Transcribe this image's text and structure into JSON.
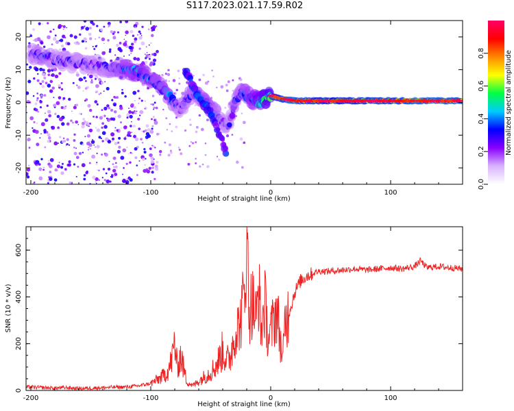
{
  "figure": {
    "title": "S117.2023.021.17.59.R02"
  },
  "chart_data": [
    {
      "type": "heatmap",
      "title": "",
      "xlabel": "Height of straight line (km)",
      "ylabel": "Frequency (Hz)",
      "xlim": [
        -204,
        160
      ],
      "ylim": [
        -25,
        25
      ],
      "xticks": [
        -200,
        -100,
        0,
        100
      ],
      "yticks": [
        -20,
        -10,
        0,
        10,
        20
      ],
      "xtick_labels": [
        "-200",
        "-100",
        "0",
        "100"
      ],
      "ytick_labels": [
        "-20",
        "-10",
        "0",
        "10",
        "20"
      ],
      "colorbar": {
        "label": "Normalized spectral amplitude",
        "range": [
          0,
          1
        ],
        "ticks": [
          0.0,
          0.2,
          0.4,
          0.6,
          0.8
        ],
        "tick_labels": [
          "0.0",
          "0.2",
          "0.4",
          "0.6",
          "0.8"
        ],
        "colormap": [
          "#ffffff",
          "#d9b3ff",
          "#8800ff",
          "#0000ff",
          "#00ccff",
          "#00ff44",
          "#ffff00",
          "#ff8800",
          "#ff0000",
          "#ff0066"
        ]
      },
      "ridge": {
        "x": [
          -200,
          -190,
          -180,
          -170,
          -160,
          -150,
          -140,
          -130,
          -120,
          -110,
          -100,
          -90,
          -85,
          -80,
          -75,
          -70,
          -65,
          -60,
          -55,
          -50,
          -45,
          -40,
          -36,
          -33,
          -30,
          -25,
          -20,
          -15,
          -10,
          -5,
          0,
          10,
          20,
          40,
          60,
          80,
          100,
          120,
          140,
          160
        ],
        "y": [
          15,
          14,
          13,
          12.5,
          12,
          11.5,
          11,
          10.5,
          10,
          9.5,
          7,
          4,
          2,
          0,
          -2,
          1,
          3,
          2,
          0,
          -2,
          -4,
          -6,
          -7,
          -5,
          0,
          3,
          2,
          1,
          0,
          1,
          2,
          1,
          0.5,
          0.5,
          0.5,
          0.5,
          0.5,
          0.5,
          0.5,
          0.5
        ],
        "amplitude": [
          0.3,
          0.35,
          0.3,
          0.3,
          0.3,
          0.3,
          0.3,
          0.35,
          0.4,
          0.45,
          0.4,
          0.4,
          0.4,
          0.35,
          0.3,
          0.35,
          0.35,
          0.35,
          0.4,
          0.4,
          0.35,
          0.3,
          0.3,
          0.3,
          0.35,
          0.35,
          0.4,
          0.45,
          0.5,
          0.55,
          0.6,
          0.8,
          0.85,
          0.75,
          0.75,
          0.8,
          0.8,
          0.85,
          0.85,
          0.85
        ]
      },
      "branch": {
        "x": [
          -72,
          -68,
          -65,
          -62,
          -58,
          -55,
          -50,
          -47,
          -44,
          -40,
          -37
        ],
        "y": [
          10,
          8,
          5,
          3,
          1,
          -1,
          -3,
          -6,
          -9,
          -12,
          -16
        ]
      }
    },
    {
      "type": "line",
      "title": "",
      "xlabel": "Height of straight line (km)",
      "ylabel": "SNR (10 * v/v)",
      "xlim": [
        -204,
        160
      ],
      "ylim": [
        0,
        700
      ],
      "xticks": [
        -200,
        -100,
        0,
        100
      ],
      "yticks": [
        0,
        200,
        400,
        600
      ],
      "xtick_labels": [
        "-200",
        "-100",
        "0",
        "100"
      ],
      "ytick_labels": [
        "0",
        "200",
        "400",
        "600"
      ],
      "series": [
        {
          "color": "#ee2222",
          "x": [
            -204,
            -190,
            -180,
            -170,
            -160,
            -150,
            -140,
            -130,
            -120,
            -110,
            -100,
            -95,
            -90,
            -85,
            -82,
            -80,
            -78,
            -75,
            -72,
            -70,
            -65,
            -60,
            -55,
            -50,
            -45,
            -40,
            -35,
            -30,
            -25,
            -22,
            -20,
            -18,
            -15,
            -12,
            -10,
            -8,
            -5,
            -2,
            0,
            5,
            8,
            10,
            12,
            15,
            18,
            20,
            25,
            30,
            35,
            40,
            50,
            60,
            70,
            80,
            90,
            100,
            110,
            120,
            125,
            130,
            140,
            150,
            160
          ],
          "y": [
            15,
            12,
            10,
            12,
            8,
            10,
            12,
            14,
            15,
            20,
            30,
            45,
            60,
            90,
            140,
            210,
            100,
            150,
            80,
            40,
            20,
            40,
            60,
            80,
            110,
            170,
            120,
            240,
            300,
            420,
            700,
            350,
            380,
            300,
            450,
            250,
            380,
            220,
            250,
            350,
            220,
            120,
            300,
            330,
            380,
            420,
            470,
            490,
            500,
            510,
            510,
            515,
            520,
            515,
            520,
            525,
            520,
            530,
            555,
            525,
            530,
            525,
            520
          ]
        }
      ]
    }
  ]
}
